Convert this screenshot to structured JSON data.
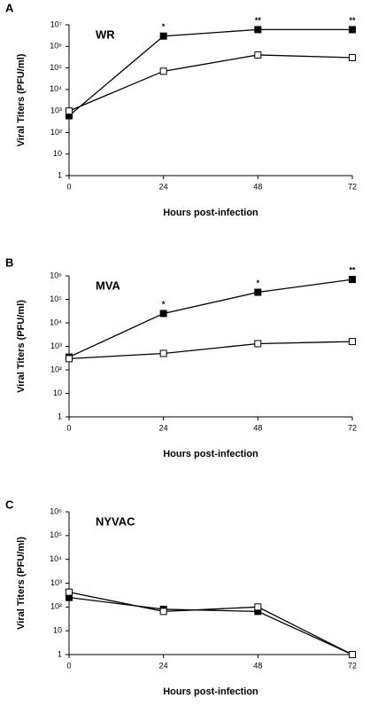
{
  "chart_data": [
    {
      "type": "line",
      "panel_label": "A",
      "title": "WR",
      "xlabel": "Hours post-infection",
      "ylabel": "Viral Titers (PFU/ml)",
      "x": [
        0,
        24,
        48,
        72
      ],
      "xlim": [
        0,
        72
      ],
      "xticks": [
        0,
        24,
        48,
        72
      ],
      "log_y": true,
      "ylim": [
        1,
        10000000
      ],
      "yticks": [
        1,
        10,
        {
          "value": 100,
          "label": "10²"
        },
        {
          "value": 1000,
          "label": "10³"
        },
        {
          "value": 10000,
          "label": "10⁴"
        },
        {
          "value": 100000,
          "label": "10⁵"
        },
        {
          "value": 1000000,
          "label": "10⁶"
        },
        {
          "value": 10000000,
          "label": "10⁷"
        }
      ],
      "annotations": [
        null,
        "*",
        "**",
        "**"
      ],
      "series": [
        {
          "color": "#000000",
          "marker_fill": "#000000",
          "values": [
            600,
            3000000,
            6000000,
            6000000
          ]
        },
        {
          "color": "#000000",
          "marker_fill": "#ffffff",
          "values": [
            1000,
            70000,
            400000,
            300000
          ]
        }
      ]
    },
    {
      "type": "line",
      "panel_label": "B",
      "title": "MVA",
      "xlabel": "Hours post-infection",
      "ylabel": "Viral Titers (PFU/ml)",
      "x": [
        0,
        24,
        48,
        72
      ],
      "xlim": [
        0,
        72
      ],
      "xticks": [
        0,
        24,
        48,
        72
      ],
      "log_y": true,
      "ylim": [
        1,
        1000000
      ],
      "yticks": [
        1,
        10,
        {
          "value": 100,
          "label": "10²"
        },
        {
          "value": 1000,
          "label": "10³"
        },
        {
          "value": 10000,
          "label": "10⁴"
        },
        {
          "value": 100000,
          "label": "10⁵"
        },
        {
          "value": 1000000,
          "label": "10⁶"
        }
      ],
      "annotations": [
        null,
        "*",
        "*",
        "**"
      ],
      "series": [
        {
          "color": "#000000",
          "marker_fill": "#000000",
          "values": [
            350,
            25000,
            200000,
            700000
          ]
        },
        {
          "color": "#000000",
          "marker_fill": "#ffffff",
          "values": [
            300,
            500,
            1300,
            1600
          ]
        }
      ]
    },
    {
      "type": "line",
      "panel_label": "C",
      "title": "NYVAC",
      "xlabel": "Hours post-infection",
      "ylabel": "Viral Titers (PFU/ml)",
      "x": [
        0,
        24,
        48,
        72
      ],
      "xlim": [
        0,
        72
      ],
      "xticks": [
        0,
        24,
        48,
        72
      ],
      "log_y": true,
      "ylim": [
        1,
        1000000
      ],
      "yticks": [
        1,
        10,
        {
          "value": 100,
          "label": "10²"
        },
        {
          "value": 1000,
          "label": "10³"
        },
        {
          "value": 10000,
          "label": "10⁴"
        },
        {
          "value": 100000,
          "label": "10⁵"
        },
        {
          "value": 1000000,
          "label": "10⁶"
        }
      ],
      "series": [
        {
          "color": "#000000",
          "marker_fill": "#000000",
          "values": [
            250,
            80,
            65,
            1
          ]
        },
        {
          "color": "#000000",
          "marker_fill": "#ffffff",
          "values": [
            420,
            65,
            100,
            1
          ]
        }
      ]
    }
  ]
}
